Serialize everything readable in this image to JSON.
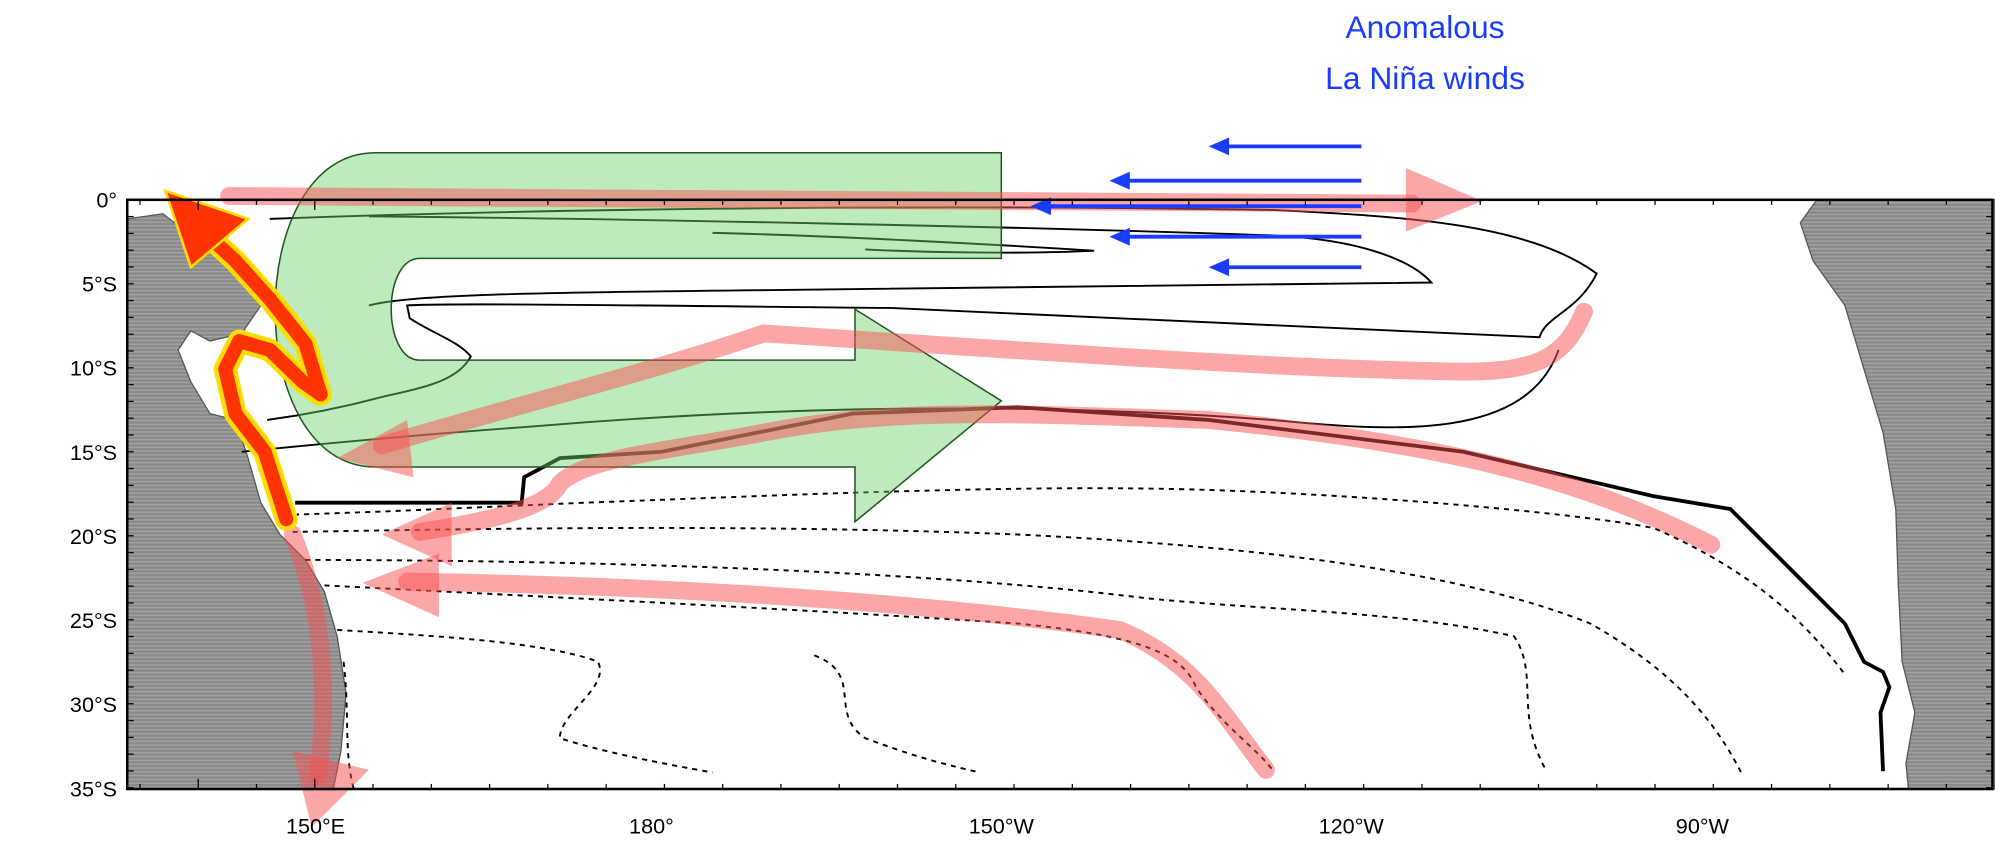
{
  "annotation": {
    "lines": [
      "Anomalous",
      "La Niña winds"
    ]
  },
  "latitude_labels": [
    "0°",
    "5°S",
    "10°S",
    "15°S",
    "20°S",
    "25°S",
    "30°S",
    "35°S"
  ],
  "longitude_labels": [
    "150°E",
    "180°",
    "150°W",
    "120°W",
    "90°W"
  ]
}
